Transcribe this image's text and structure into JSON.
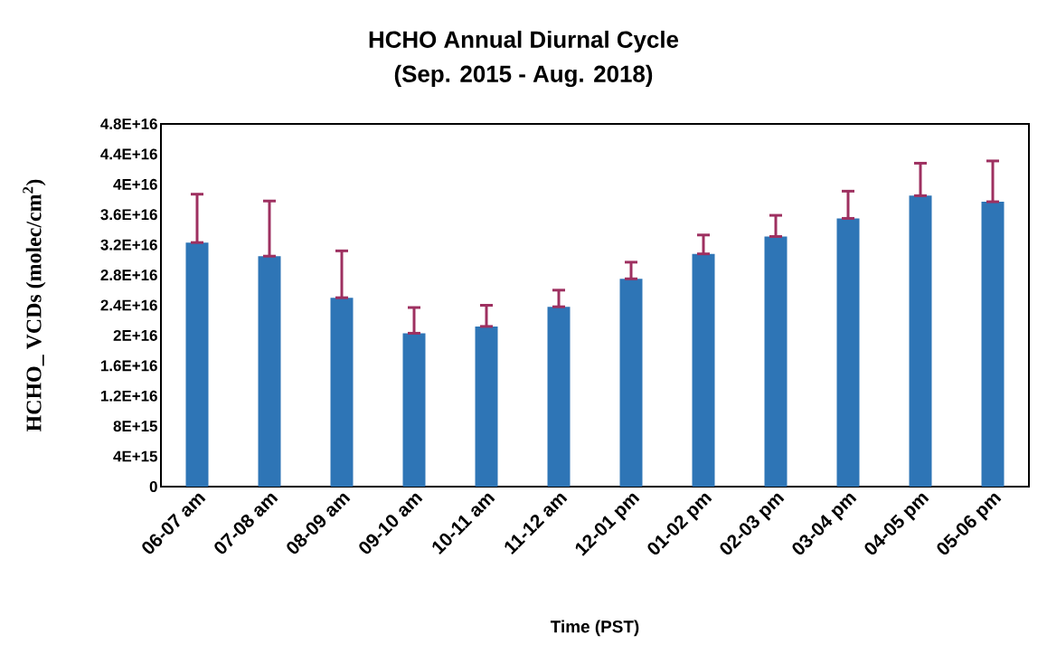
{
  "chart_data": {
    "type": "bar",
    "title": "HCHO Annual Diurnal Cycle",
    "subtitle": "(Sep. 2015 - Aug. 2018)",
    "xlabel": "Time  (PST)",
    "ylabel": "HCHO_ VCDs (molec/cm$^{2}$)",
    "categories": [
      "06-07 am",
      "07-08 am",
      "08-09 am",
      "09-10 am",
      "10-11 am",
      "11-12 am",
      "12-01 pm",
      "01-02 pm",
      "02-03 pm",
      "03-04 pm",
      "04-05 pm",
      "05-06 pm"
    ],
    "values": [
      3.23e+16,
      3.05e+16,
      2.5e+16,
      2.03e+16,
      2.12e+16,
      2.38e+16,
      2.75e+16,
      3.08e+16,
      3.31e+16,
      3.55e+16,
      3.85e+16,
      3.77e+16
    ],
    "errors": [
      [
        3.23e+16,
        3.87e+16
      ],
      [
        3.05e+16,
        3.78e+16
      ],
      [
        2.5e+16,
        3.12e+16
      ],
      [
        2.03e+16,
        2.37e+16
      ],
      [
        2.12e+16,
        2.4e+16
      ],
      [
        2.38e+16,
        2.6e+16
      ],
      [
        2.75e+16,
        2.97e+16
      ],
      [
        3.08e+16,
        3.33e+16
      ],
      [
        3.31e+16,
        3.59e+16
      ],
      [
        3.55e+16,
        3.91e+16
      ],
      [
        3.85e+16,
        4.28e+16
      ],
      [
        3.77e+16,
        4.31e+16
      ]
    ],
    "color": "#2e75b6",
    "ylim": [
      0,
      4.8e+16
    ],
    "yticks": [
      0,
      {
        "value": 4000000000000000.0,
        "label": "4E+15"
      },
      {
        "value": 8000000000000000.0,
        "label": "8E+15"
      },
      {
        "value": 1.2e+16,
        "label": "1.2E+16"
      },
      {
        "value": 1.6e+16,
        "label": "1.6E+16"
      },
      {
        "value": 2e+16,
        "label": "2E+16"
      },
      {
        "value": 2.4e+16,
        "label": "2.4E+16"
      },
      {
        "value": 2.8e+16,
        "label": "2.8E+16"
      },
      {
        "value": 3.2e+16,
        "label": "3.2E+16"
      },
      {
        "value": 3.6e+16,
        "label": "3.6E+16"
      },
      {
        "value": 4e+16,
        "label": "4E+16"
      },
      {
        "value": 4.4e+16,
        "label": "4.4E+16"
      },
      {
        "value": 4.8e+16,
        "label": "4.8E+16"
      }
    ],
    "grid": false,
    "legend": false
  }
}
